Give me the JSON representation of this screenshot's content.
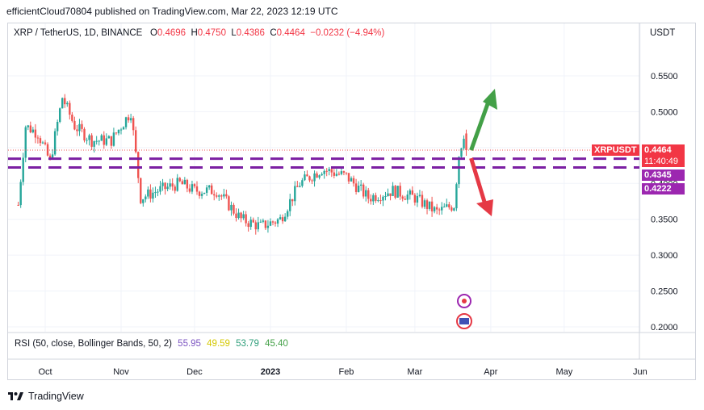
{
  "header": {
    "text": "efficientCloud70804 published on TradingView.com, Mar 22, 2023 12:19 UTC"
  },
  "symbol": {
    "name": "XRP / TetherUS, 1D, BINANCE",
    "open_label": "O",
    "open": "0.4696",
    "high_label": "H",
    "high": "0.4750",
    "low_label": "L",
    "low": "0.4386",
    "close_label": "C",
    "close": "0.4464",
    "change": "−0.0232 (−4.94%)"
  },
  "currency": "USDT",
  "price_tags": {
    "symbol_label": "XRPUSDT",
    "current_price": "0.4464",
    "countdown": "11:40:49",
    "level_upper": "0.4345",
    "level_lower": "0.4222"
  },
  "rsi": {
    "label": "RSI (50, close, Bollinger Bands, 50, 2)",
    "v1": "55.95",
    "v2": "49.59",
    "v3": "53.79",
    "v4": "45.40"
  },
  "brand": {
    "name": "TradingView"
  },
  "colors": {
    "up": "#26a69a",
    "down": "#ef5350",
    "level": "#7b1fa2",
    "tag_red": "#f23645",
    "tag_purple": "#9c27b0",
    "arrow_up": "#43a047",
    "arrow_down": "#e53945"
  },
  "chart_data": {
    "type": "candlestick",
    "title": "XRP / TetherUS, 1D, BINANCE",
    "y_axis": {
      "ticks": [
        "0.5500",
        "0.5000",
        "0.4500",
        "0.4000",
        "0.3500",
        "0.3000",
        "0.2500",
        "0.2000"
      ],
      "ylim": [
        0.19,
        0.57
      ],
      "position": "right"
    },
    "x_axis": {
      "ticks": [
        "Oct",
        "Nov",
        "Dec",
        "2023",
        "Feb",
        "Mar",
        "Apr",
        "May",
        "Jun"
      ]
    },
    "grid": true,
    "horizontal_levels": [
      0.4345,
      0.4222
    ],
    "last_price": 0.4464,
    "anchors": [
      {
        "date": "2022-09-20",
        "close": 0.37
      },
      {
        "date": "2022-09-23",
        "close": 0.48
      },
      {
        "date": "2022-09-28",
        "close": 0.47
      },
      {
        "date": "2022-10-03",
        "close": 0.43
      },
      {
        "date": "2022-10-08",
        "close": 0.52
      },
      {
        "date": "2022-10-13",
        "close": 0.48
      },
      {
        "date": "2022-10-20",
        "close": 0.46
      },
      {
        "date": "2022-10-28",
        "close": 0.46
      },
      {
        "date": "2022-11-05",
        "close": 0.5
      },
      {
        "date": "2022-11-09",
        "close": 0.38
      },
      {
        "date": "2022-11-16",
        "close": 0.39
      },
      {
        "date": "2022-11-25",
        "close": 0.4
      },
      {
        "date": "2022-12-01",
        "close": 0.39
      },
      {
        "date": "2022-12-10",
        "close": 0.39
      },
      {
        "date": "2022-12-20",
        "close": 0.35
      },
      {
        "date": "2022-12-28",
        "close": 0.34
      },
      {
        "date": "2023-01-05",
        "close": 0.35
      },
      {
        "date": "2023-01-13",
        "close": 0.4
      },
      {
        "date": "2023-01-22",
        "close": 0.42
      },
      {
        "date": "2023-02-01",
        "close": 0.41
      },
      {
        "date": "2023-02-10",
        "close": 0.38
      },
      {
        "date": "2023-02-20",
        "close": 0.39
      },
      {
        "date": "2023-03-01",
        "close": 0.38
      },
      {
        "date": "2023-03-10",
        "close": 0.36
      },
      {
        "date": "2023-03-17",
        "close": 0.37
      },
      {
        "date": "2023-03-19",
        "close": 0.44
      },
      {
        "date": "2023-03-21",
        "close": 0.4696
      },
      {
        "date": "2023-03-22",
        "close": 0.4464
      }
    ]
  }
}
